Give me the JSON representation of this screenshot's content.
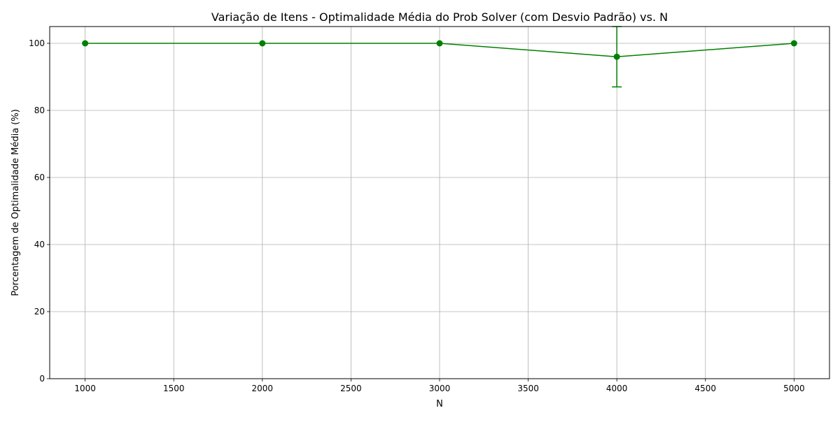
{
  "chart_data": {
    "type": "line",
    "title": "Variação de Itens - Optimalidade Média do Prob Solver (com Desvio Padrão) vs. N",
    "xlabel": "N",
    "ylabel": "Porcentagem de Optimalidade Média (%)",
    "xlim": [
      800,
      5200
    ],
    "ylim": [
      0,
      105
    ],
    "x_ticks": [
      1000,
      1500,
      2000,
      2500,
      3000,
      3500,
      4000,
      4500,
      5000
    ],
    "y_ticks": [
      0,
      20,
      40,
      60,
      80,
      100
    ],
    "grid": true,
    "series": [
      {
        "color": "#008000",
        "marker": "circle",
        "x": [
          1000,
          2000,
          3000,
          4000,
          5000
        ],
        "y": [
          100,
          100,
          100,
          96,
          100
        ],
        "yerr": [
          0,
          0,
          0,
          9,
          0
        ]
      }
    ]
  }
}
